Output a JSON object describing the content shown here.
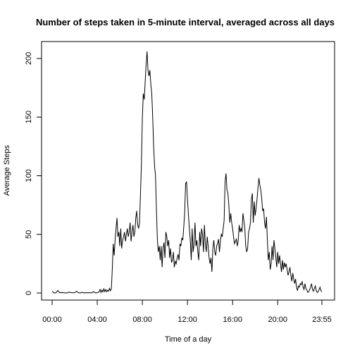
{
  "chart_data": {
    "type": "line",
    "title": "Number of steps taken in 5-minute interval, averaged across all days",
    "xlabel": "Time of a day",
    "ylabel": "Average Steps",
    "x_ticks": [
      {
        "minute": 0,
        "label": "00:00"
      },
      {
        "minute": 240,
        "label": "04:00"
      },
      {
        "minute": 480,
        "label": "08:00"
      },
      {
        "minute": 720,
        "label": "12:00"
      },
      {
        "minute": 960,
        "label": "16:00"
      },
      {
        "minute": 1200,
        "label": "20:00"
      },
      {
        "minute": 1435,
        "label": "23:55"
      }
    ],
    "y_ticks": [
      0,
      50,
      100,
      150,
      200
    ],
    "xlim": [
      0,
      1435
    ],
    "ylim": [
      0,
      206
    ],
    "grid": false,
    "series": [
      {
        "x_unit": "minutes since 00:00",
        "points": [
          [
            0,
            1.7
          ],
          [
            10,
            0.1
          ],
          [
            20,
            0.1
          ],
          [
            30,
            2.1
          ],
          [
            40,
            0.3
          ],
          [
            50,
            0.4
          ],
          [
            60,
            0.3
          ],
          [
            70,
            0.1
          ],
          [
            80,
            0.1
          ],
          [
            90,
            0.8
          ],
          [
            100,
            0.3
          ],
          [
            110,
            0.2
          ],
          [
            120,
            0.3
          ],
          [
            130,
            1.5
          ],
          [
            140,
            0.2
          ],
          [
            150,
            0.1
          ],
          [
            160,
            0.6
          ],
          [
            170,
            0.1
          ],
          [
            180,
            0.3
          ],
          [
            190,
            0.2
          ],
          [
            200,
            0.3
          ],
          [
            210,
            0.1
          ],
          [
            220,
            1.2
          ],
          [
            230,
            0.1
          ],
          [
            240,
            0.2
          ],
          [
            250,
            1.0
          ],
          [
            255,
            3.0
          ],
          [
            260,
            0.5
          ],
          [
            265,
            2.5
          ],
          [
            270,
            1.0
          ],
          [
            275,
            3.5
          ],
          [
            280,
            1.2
          ],
          [
            285,
            3.0
          ],
          [
            290,
            1.0
          ],
          [
            295,
            2.5
          ],
          [
            300,
            1.5
          ],
          [
            305,
            4.0
          ],
          [
            310,
            2.0
          ],
          [
            315,
            3.5
          ],
          [
            320,
            20.0
          ],
          [
            325,
            42.0
          ],
          [
            330,
            32.0
          ],
          [
            335,
            45.0
          ],
          [
            340,
            55.0
          ],
          [
            345,
            64.0
          ],
          [
            350,
            48.0
          ],
          [
            355,
            52.0
          ],
          [
            360,
            40.0
          ],
          [
            365,
            55.0
          ],
          [
            370,
            38.0
          ],
          [
            375,
            45.0
          ],
          [
            380,
            48.0
          ],
          [
            385,
            52.0
          ],
          [
            390,
            44.0
          ],
          [
            395,
            50.0
          ],
          [
            400,
            55.0
          ],
          [
            405,
            48.0
          ],
          [
            410,
            52.0
          ],
          [
            415,
            60.0
          ],
          [
            420,
            44.0
          ],
          [
            425,
            52.0
          ],
          [
            430,
            58.0
          ],
          [
            435,
            48.0
          ],
          [
            440,
            52.0
          ],
          [
            445,
            64.0
          ],
          [
            450,
            70.0
          ],
          [
            455,
            58.0
          ],
          [
            460,
            55.0
          ],
          [
            465,
            60.0
          ],
          [
            470,
            85.0
          ],
          [
            475,
            110.0
          ],
          [
            480,
            150.0
          ],
          [
            485,
            170.0
          ],
          [
            490,
            165.0
          ],
          [
            495,
            180.0
          ],
          [
            500,
            195.0
          ],
          [
            505,
            206.0
          ],
          [
            510,
            190.0
          ],
          [
            515,
            185.0
          ],
          [
            520,
            190.0
          ],
          [
            525,
            178.0
          ],
          [
            530,
            170.0
          ],
          [
            535,
            150.0
          ],
          [
            540,
            125.0
          ],
          [
            545,
            108.0
          ],
          [
            550,
            100.0
          ],
          [
            555,
            70.0
          ],
          [
            560,
            45.0
          ],
          [
            565,
            35.0
          ],
          [
            570,
            40.0
          ],
          [
            575,
            28.0
          ],
          [
            580,
            40.0
          ],
          [
            585,
            22.0
          ],
          [
            590,
            38.0
          ],
          [
            595,
            43.0
          ],
          [
            600,
            30.0
          ],
          [
            605,
            52.0
          ],
          [
            610,
            48.0
          ],
          [
            615,
            40.0
          ],
          [
            620,
            45.0
          ],
          [
            625,
            30.0
          ],
          [
            630,
            38.0
          ],
          [
            635,
            26.0
          ],
          [
            640,
            28.0
          ],
          [
            645,
            35.0
          ],
          [
            650,
            22.0
          ],
          [
            655,
            27.0
          ],
          [
            660,
            25.0
          ],
          [
            665,
            30.0
          ],
          [
            670,
            33.0
          ],
          [
            675,
            28.0
          ],
          [
            680,
            42.0
          ],
          [
            685,
            40.0
          ],
          [
            690,
            47.0
          ],
          [
            695,
            45.0
          ],
          [
            700,
            56.0
          ],
          [
            705,
            68.0
          ],
          [
            710,
            93.0
          ],
          [
            715,
            95.0
          ],
          [
            720,
            80.0
          ],
          [
            725,
            67.0
          ],
          [
            730,
            55.0
          ],
          [
            735,
            45.0
          ],
          [
            740,
            28.0
          ],
          [
            745,
            55.0
          ],
          [
            750,
            35.0
          ],
          [
            755,
            42.0
          ],
          [
            760,
            60.0
          ],
          [
            765,
            40.0
          ],
          [
            770,
            45.0
          ],
          [
            775,
            35.0
          ],
          [
            780,
            28.0
          ],
          [
            785,
            52.0
          ],
          [
            790,
            40.0
          ],
          [
            795,
            55.0
          ],
          [
            800,
            50.0
          ],
          [
            805,
            35.0
          ],
          [
            810,
            58.0
          ],
          [
            815,
            42.0
          ],
          [
            820,
            35.0
          ],
          [
            825,
            48.0
          ],
          [
            830,
            40.0
          ],
          [
            835,
            30.0
          ],
          [
            840,
            25.0
          ],
          [
            845,
            30.0
          ],
          [
            850,
            18.0
          ],
          [
            855,
            38.0
          ],
          [
            860,
            45.0
          ],
          [
            865,
            35.0
          ],
          [
            870,
            32.0
          ],
          [
            875,
            40.0
          ],
          [
            880,
            42.0
          ],
          [
            885,
            46.0
          ],
          [
            890,
            35.0
          ],
          [
            895,
            44.0
          ],
          [
            900,
            50.0
          ],
          [
            905,
            48.0
          ],
          [
            910,
            55.0
          ],
          [
            915,
            62.0
          ],
          [
            920,
            95.0
          ],
          [
            925,
            102.0
          ],
          [
            930,
            88.0
          ],
          [
            935,
            85.0
          ],
          [
            940,
            75.0
          ],
          [
            945,
            60.0
          ],
          [
            950,
            68.0
          ],
          [
            955,
            60.0
          ],
          [
            960,
            55.0
          ],
          [
            965,
            48.0
          ],
          [
            970,
            42.0
          ],
          [
            975,
            44.0
          ],
          [
            980,
            46.0
          ],
          [
            985,
            40.0
          ],
          [
            990,
            45.0
          ],
          [
            995,
            58.0
          ],
          [
            1000,
            52.0
          ],
          [
            1005,
            55.0
          ],
          [
            1010,
            52.0
          ],
          [
            1015,
            68.0
          ],
          [
            1020,
            62.0
          ],
          [
            1025,
            55.0
          ],
          [
            1030,
            40.0
          ],
          [
            1035,
            35.0
          ],
          [
            1040,
            38.0
          ],
          [
            1045,
            52.0
          ],
          [
            1050,
            55.0
          ],
          [
            1055,
            60.0
          ],
          [
            1060,
            80.0
          ],
          [
            1065,
            85.0
          ],
          [
            1070,
            60.0
          ],
          [
            1075,
            78.0
          ],
          [
            1080,
            66.0
          ],
          [
            1085,
            72.0
          ],
          [
            1090,
            80.0
          ],
          [
            1095,
            90.0
          ],
          [
            1100,
            98.0
          ],
          [
            1105,
            92.0
          ],
          [
            1110,
            88.0
          ],
          [
            1115,
            80.0
          ],
          [
            1120,
            70.0
          ],
          [
            1125,
            72.0
          ],
          [
            1130,
            60.0
          ],
          [
            1135,
            55.0
          ],
          [
            1140,
            65.0
          ],
          [
            1145,
            45.0
          ],
          [
            1150,
            28.0
          ],
          [
            1155,
            35.0
          ],
          [
            1160,
            20.0
          ],
          [
            1165,
            25.0
          ],
          [
            1170,
            40.0
          ],
          [
            1175,
            28.0
          ],
          [
            1180,
            45.0
          ],
          [
            1185,
            38.0
          ],
          [
            1190,
            30.0
          ],
          [
            1195,
            22.0
          ],
          [
            1200,
            35.0
          ],
          [
            1205,
            25.0
          ],
          [
            1210,
            32.0
          ],
          [
            1215,
            25.0
          ],
          [
            1220,
            18.0
          ],
          [
            1225,
            28.0
          ],
          [
            1230,
            20.0
          ],
          [
            1235,
            26.0
          ],
          [
            1240,
            22.0
          ],
          [
            1245,
            25.0
          ],
          [
            1250,
            20.0
          ],
          [
            1255,
            15.0
          ],
          [
            1260,
            18.0
          ],
          [
            1265,
            22.0
          ],
          [
            1270,
            15.0
          ],
          [
            1275,
            10.0
          ],
          [
            1280,
            17.0
          ],
          [
            1285,
            12.0
          ],
          [
            1290,
            8.0
          ],
          [
            1295,
            12.0
          ],
          [
            1300,
            5.0
          ],
          [
            1305,
            2.0
          ],
          [
            1310,
            6.0
          ],
          [
            1315,
            5.0
          ],
          [
            1320,
            8.0
          ],
          [
            1325,
            7.0
          ],
          [
            1330,
            10.0
          ],
          [
            1335,
            5.0
          ],
          [
            1340,
            3.0
          ],
          [
            1345,
            8.0
          ],
          [
            1350,
            4.0
          ],
          [
            1355,
            2.5
          ],
          [
            1360,
            0.5
          ],
          [
            1365,
            1.2
          ],
          [
            1370,
            3.0
          ],
          [
            1375,
            5.0
          ],
          [
            1380,
            8.0
          ],
          [
            1385,
            3.0
          ],
          [
            1390,
            1.5
          ],
          [
            1395,
            4.0
          ],
          [
            1400,
            6.0
          ],
          [
            1405,
            2.0
          ],
          [
            1410,
            0.5
          ],
          [
            1415,
            1.0
          ],
          [
            1420,
            3.0
          ],
          [
            1425,
            5.0
          ],
          [
            1430,
            2.0
          ],
          [
            1435,
            1.0
          ]
        ]
      }
    ]
  }
}
